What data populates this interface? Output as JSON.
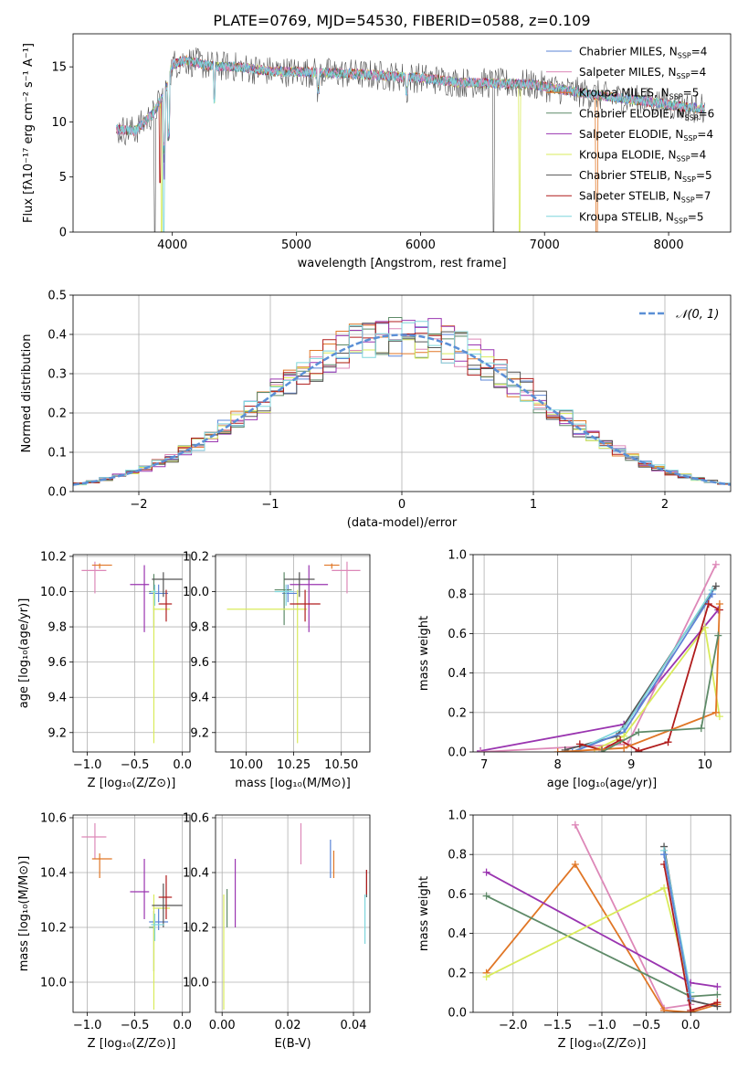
{
  "figure_title": "PLATE=0769, MJD=54530, FIBERID=0588, z=0.109",
  "colors": {
    "Chabrier MILES": "#5b84d6",
    "Salpeter MILES": "#dd88b8",
    "Kroupa MILES": "#e07626",
    "Chabrier ELODIE": "#5e8a68",
    "Salpeter ELODIE": "#9a35b0",
    "Kroupa ELODIE": "#d9eb5b",
    "Chabrier STELIB": "#555555",
    "Salpeter STELIB": "#b01c1c",
    "Kroupa STELIB": "#7fd6dc"
  },
  "chart_data": [
    {
      "id": "spectrum",
      "type": "line",
      "xlabel": "wavelength [Angstrom, rest frame]",
      "ylabel": "Flux [fλ10⁻¹⁷ erg cm⁻² s⁻¹ A⁻¹]",
      "xlim": [
        3200,
        8500
      ],
      "ylim": [
        0,
        18
      ],
      "xticks": [
        4000,
        5000,
        6000,
        7000,
        8000
      ],
      "yticks": [
        0,
        5,
        10,
        15
      ],
      "grid": false,
      "legend": "top-right",
      "legend_entries": [
        {
          "name": "Chabrier MILES",
          "suffix": "=4"
        },
        {
          "name": "Salpeter MILES",
          "suffix": "=4"
        },
        {
          "name": "Kroupa MILES",
          "suffix": "=5"
        },
        {
          "name": "Chabrier ELODIE",
          "suffix": "=6"
        },
        {
          "name": "Salpeter ELODIE",
          "suffix": "=4"
        },
        {
          "name": "Kroupa ELODIE",
          "suffix": "=4"
        },
        {
          "name": "Chabrier STELIB",
          "suffix": "=5"
        },
        {
          "name": "Salpeter STELIB",
          "suffix": "=7"
        },
        {
          "name": "Kroupa STELIB",
          "suffix": "=5"
        }
      ],
      "continuum": {
        "x": [
          3550,
          3700,
          3850,
          3950,
          4000,
          4100,
          4300,
          4500,
          4800,
          5100,
          5400,
          5700,
          6000,
          6300,
          6600,
          6900,
          7200,
          7500,
          7800,
          8100,
          8300
        ],
        "y": [
          9.3,
          9.2,
          10.8,
          13.0,
          15.2,
          15.6,
          15.1,
          15.0,
          14.6,
          14.5,
          14.4,
          14.2,
          14.0,
          13.6,
          13.5,
          13.4,
          12.8,
          12.3,
          11.9,
          11.4,
          11.2
        ]
      }
    },
    {
      "id": "residuals",
      "type": "bar",
      "xlabel": "(data-model)/error",
      "ylabel": "Normed distribution",
      "xlim": [
        -2.5,
        2.5
      ],
      "ylim": [
        0,
        0.5
      ],
      "xticks": [
        -2,
        -1,
        0,
        1,
        2
      ],
      "yticks": [
        0.0,
        0.1,
        0.2,
        0.3,
        0.4,
        0.5
      ],
      "grid": true,
      "legend": "top-right",
      "legend_label": "𝒩(0, 1)",
      "bin_width": 0.1,
      "gaussian_color": "#5b8fd6"
    },
    {
      "id": "Z-age",
      "type": "scatter",
      "xlabel": "Z [log₁₀(Z/Z⊙)]",
      "ylabel": "age  [log₁₀(age/yr)]",
      "xlim": [
        -1.15,
        0.08
      ],
      "ylim": [
        9.09,
        10.21
      ],
      "xticks": [
        -1.0,
        -0.5,
        0.0
      ],
      "yticks": [
        9.2,
        9.4,
        9.6,
        9.8,
        10.0,
        10.2
      ],
      "grid": true,
      "points": [
        {
          "model": "Chabrier MILES",
          "x": -0.25,
          "y": 9.99,
          "xerr": [
            0.1,
            0.1
          ],
          "yerr": [
            0.05,
            0.05
          ]
        },
        {
          "model": "Salpeter MILES",
          "x": -0.92,
          "y": 10.12,
          "xerr": [
            0.14,
            0.12
          ],
          "yerr": [
            0.13,
            0.05
          ]
        },
        {
          "model": "Kroupa MILES",
          "x": -0.87,
          "y": 10.15,
          "xerr": [
            0.08,
            0.13
          ],
          "yerr": [
            0.02,
            0.01
          ]
        },
        {
          "model": "Chabrier ELODIE",
          "x": -0.3,
          "y": 10.0,
          "xerr": [
            0.05,
            0.01
          ],
          "yerr": [
            0.2,
            0.1
          ]
        },
        {
          "model": "Salpeter ELODIE",
          "x": -0.4,
          "y": 10.04,
          "xerr": [
            0.15,
            0.05
          ],
          "yerr": [
            0.27,
            0.11
          ]
        },
        {
          "model": "Kroupa ELODIE",
          "x": -0.3,
          "y": 9.9,
          "xerr": [
            0.01,
            0.17
          ],
          "yerr": [
            0.76,
            0.11
          ]
        },
        {
          "model": "Chabrier STELIB",
          "x": -0.2,
          "y": 10.07,
          "xerr": [
            0.12,
            0.2
          ],
          "yerr": [
            0.1,
            0.04
          ]
        },
        {
          "model": "Salpeter STELIB",
          "x": -0.17,
          "y": 9.93,
          "xerr": [
            0.08,
            0.06
          ],
          "yerr": [
            0.1,
            0.08
          ]
        },
        {
          "model": "Kroupa STELIB",
          "x": -0.29,
          "y": 10.0,
          "xerr": [
            0.04,
            0.02
          ],
          "yerr": [
            0.08,
            0.04
          ]
        }
      ]
    },
    {
      "id": "mass-age",
      "type": "scatter",
      "xlabel": "mass [log₁₀(M/M⊙)]",
      "ylabel": "",
      "xlim": [
        9.84,
        10.65
      ],
      "ylim": [
        9.09,
        10.21
      ],
      "xticks": [
        10.0,
        10.25,
        10.5
      ],
      "yticks": [
        9.2,
        9.4,
        9.6,
        9.8,
        10.0,
        10.2
      ],
      "grid": true,
      "points": [
        {
          "model": "Chabrier MILES",
          "x": 10.22,
          "y": 9.99,
          "xerr": [
            0.03,
            0.05
          ],
          "yerr": [
            0.05,
            0.05
          ]
        },
        {
          "model": "Salpeter MILES",
          "x": 10.53,
          "y": 10.12,
          "xerr": [
            0.08,
            0.07
          ],
          "yerr": [
            0.13,
            0.05
          ]
        },
        {
          "model": "Kroupa MILES",
          "x": 10.45,
          "y": 10.15,
          "xerr": [
            0.04,
            0.04
          ],
          "yerr": [
            0.02,
            0.01
          ]
        },
        {
          "model": "Chabrier ELODIE",
          "x": 10.2,
          "y": 10.01,
          "xerr": [
            0.05,
            0.04
          ],
          "yerr": [
            0.2,
            0.1
          ]
        },
        {
          "model": "Salpeter ELODIE",
          "x": 10.33,
          "y": 10.04,
          "xerr": [
            0.1,
            0.1
          ],
          "yerr": [
            0.27,
            0.11
          ]
        },
        {
          "model": "Kroupa ELODIE",
          "x": 10.27,
          "y": 9.9,
          "xerr": [
            0.37,
            0.05
          ],
          "yerr": [
            0.76,
            0.11
          ]
        },
        {
          "model": "Chabrier STELIB",
          "x": 10.28,
          "y": 10.07,
          "xerr": [
            0.08,
            0.08
          ],
          "yerr": [
            0.1,
            0.04
          ]
        },
        {
          "model": "Salpeter STELIB",
          "x": 10.31,
          "y": 9.93,
          "xerr": [
            0.08,
            0.08
          ],
          "yerr": [
            0.1,
            0.08
          ]
        },
        {
          "model": "Kroupa STELIB",
          "x": 10.21,
          "y": 10.0,
          "xerr": [
            0.06,
            0.04
          ],
          "yerr": [
            0.08,
            0.04
          ]
        }
      ]
    },
    {
      "id": "age-weight",
      "type": "line",
      "xlabel": "age  [log₁₀(age/yr)]",
      "ylabel": "mass weight",
      "xlim": [
        6.85,
        10.35
      ],
      "ylim": [
        0,
        1.0
      ],
      "xticks": [
        7,
        8,
        9,
        10
      ],
      "yticks": [
        0.0,
        0.2,
        0.4,
        0.6,
        0.8,
        1.0
      ],
      "grid": true,
      "series": [
        {
          "model": "Salpeter ELODIE",
          "x": [
            6.95,
            8.9,
            10.18
          ],
          "y": [
            0.005,
            0.14,
            0.72
          ]
        },
        {
          "model": "Salpeter MILES",
          "x": [
            6.95,
            8.95,
            10.15
          ],
          "y": [
            0.0,
            0.04,
            0.95
          ]
        },
        {
          "model": "Chabrier STELIB",
          "x": [
            8.1,
            8.8,
            10.15
          ],
          "y": [
            0.01,
            0.08,
            0.84
          ]
        },
        {
          "model": "Kroupa STELIB",
          "x": [
            8.2,
            8.9,
            10.1
          ],
          "y": [
            0.0,
            0.12,
            0.82
          ]
        },
        {
          "model": "Chabrier MILES",
          "x": [
            8.2,
            8.9,
            10.1
          ],
          "y": [
            0.0,
            0.1,
            0.8
          ]
        },
        {
          "model": "Kroupa ELODIE",
          "x": [
            8.5,
            8.9,
            10.0,
            10.2
          ],
          "y": [
            0.01,
            0.08,
            0.63,
            0.18
          ]
        },
        {
          "model": "Salpeter STELIB",
          "x": [
            8.3,
            8.6,
            8.85,
            9.1,
            9.5,
            10.05,
            10.2
          ],
          "y": [
            0.04,
            0.01,
            0.06,
            0.005,
            0.05,
            0.75,
            0.72
          ]
        },
        {
          "model": "Kroupa MILES",
          "x": [
            8.0,
            8.9,
            10.15,
            10.2
          ],
          "y": [
            0.0,
            0.02,
            0.2,
            0.75
          ]
        },
        {
          "model": "Chabrier ELODIE",
          "x": [
            8.6,
            9.1,
            9.95,
            10.18
          ],
          "y": [
            0.0,
            0.1,
            0.12,
            0.59
          ]
        }
      ]
    },
    {
      "id": "Z-mass",
      "type": "scatter",
      "xlabel": "Z [log₁₀(Z/Z⊙)]",
      "ylabel": "mass [log₁₀(M/M⊙)]",
      "xlim": [
        -1.15,
        0.08
      ],
      "ylim": [
        9.89,
        10.61
      ],
      "xticks": [
        -1.0,
        -0.5,
        0.0
      ],
      "yticks": [
        10.0,
        10.2,
        10.4,
        10.6
      ],
      "grid": true,
      "points": [
        {
          "model": "Chabrier MILES",
          "x": -0.25,
          "y": 10.22,
          "xerr": [
            0.1,
            0.1
          ],
          "yerr": [
            0.03,
            0.05
          ]
        },
        {
          "model": "Salpeter MILES",
          "x": -0.92,
          "y": 10.53,
          "xerr": [
            0.14,
            0.12
          ],
          "yerr": [
            0.08,
            0.05
          ]
        },
        {
          "model": "Kroupa MILES",
          "x": -0.87,
          "y": 10.45,
          "xerr": [
            0.08,
            0.13
          ],
          "yerr": [
            0.07,
            0.02
          ]
        },
        {
          "model": "Chabrier ELODIE",
          "x": -0.3,
          "y": 10.2,
          "xerr": [
            0.05,
            0.01
          ],
          "yerr": [
            0.16,
            0.06
          ]
        },
        {
          "model": "Salpeter ELODIE",
          "x": -0.4,
          "y": 10.33,
          "xerr": [
            0.15,
            0.05
          ],
          "yerr": [
            0.1,
            0.12
          ]
        },
        {
          "model": "Kroupa ELODIE",
          "x": -0.3,
          "y": 10.27,
          "xerr": [
            0.01,
            0.17
          ],
          "yerr": [
            0.37,
            0.05
          ]
        },
        {
          "model": "Chabrier STELIB",
          "x": -0.2,
          "y": 10.28,
          "xerr": [
            0.12,
            0.2
          ],
          "yerr": [
            0.08,
            0.08
          ]
        },
        {
          "model": "Salpeter STELIB",
          "x": -0.17,
          "y": 10.31,
          "xerr": [
            0.08,
            0.06
          ],
          "yerr": [
            0.08,
            0.08
          ]
        },
        {
          "model": "Kroupa STELIB",
          "x": -0.29,
          "y": 10.21,
          "xerr": [
            0.04,
            0.1
          ],
          "yerr": [
            0.06,
            0.04
          ]
        }
      ]
    },
    {
      "id": "ebv-mass",
      "type": "scatter",
      "xlabel": "E(B-V)",
      "ylabel": "",
      "xlim": [
        -0.002,
        0.045
      ],
      "ylim": [
        9.89,
        10.61
      ],
      "xticks": [
        0.0,
        0.02,
        0.04
      ],
      "yticks": [
        10.0,
        10.2,
        10.4,
        10.6
      ],
      "grid": true,
      "points": [
        {
          "model": "Chabrier MILES",
          "x": 0.033,
          "y": 10.44,
          "yerr": [
            0.06,
            0.08
          ]
        },
        {
          "model": "Salpeter MILES",
          "x": 0.024,
          "y": 10.51,
          "yerr": [
            0.08,
            0.07
          ]
        },
        {
          "model": "Kroupa MILES",
          "x": 0.034,
          "y": 10.43,
          "yerr": [
            0.05,
            0.05
          ]
        },
        {
          "model": "Chabrier ELODIE",
          "x": 0.0015,
          "y": 10.27,
          "yerr": [
            0.07,
            0.07
          ]
        },
        {
          "model": "Salpeter ELODIE",
          "x": 0.004,
          "y": 10.33,
          "yerr": [
            0.13,
            0.12
          ]
        },
        {
          "model": "Kroupa ELODIE",
          "x": 0.0005,
          "y": 10.27,
          "yerr": [
            0.37,
            0.05
          ]
        },
        {
          "model": "Chabrier STELIB",
          "x": 0.044,
          "y": 10.35,
          "yerr": [
            0.04,
            0.06
          ]
        },
        {
          "model": "Salpeter STELIB",
          "x": 0.044,
          "y": 10.37,
          "yerr": [
            0.05,
            0.04
          ]
        },
        {
          "model": "Kroupa STELIB",
          "x": 0.0435,
          "y": 10.22,
          "yerr": [
            0.08,
            0.1
          ]
        }
      ]
    },
    {
      "id": "Z-weight",
      "type": "line",
      "xlabel": "Z [log₁₀(Z/Z⊙)]",
      "ylabel": "mass weight",
      "xlim": [
        -2.45,
        0.45
      ],
      "ylim": [
        0,
        1.0
      ],
      "xticks": [
        -2.0,
        -1.5,
        -1.0,
        -0.5,
        0.0
      ],
      "yticks": [
        0.0,
        0.2,
        0.4,
        0.6,
        0.8,
        1.0
      ],
      "grid": true,
      "series": [
        {
          "model": "Salpeter MILES",
          "x": [
            -1.3,
            -0.3,
            0.0
          ],
          "y": [
            0.95,
            0.02,
            0.04
          ]
        },
        {
          "model": "Kroupa MILES",
          "x": [
            -2.3,
            -1.3,
            -0.3,
            0.0,
            0.3
          ],
          "y": [
            0.2,
            0.75,
            0.01,
            0.0,
            0.04
          ]
        },
        {
          "model": "Salpeter ELODIE",
          "x": [
            -2.3,
            0.0,
            0.3
          ],
          "y": [
            0.71,
            0.15,
            0.13
          ]
        },
        {
          "model": "Chabrier ELODIE",
          "x": [
            -2.3,
            0.0,
            0.3
          ],
          "y": [
            0.59,
            0.08,
            0.09
          ]
        },
        {
          "model": "Kroupa ELODIE",
          "x": [
            -2.3,
            -0.3,
            0.0
          ],
          "y": [
            0.18,
            0.63,
            0.1
          ]
        },
        {
          "model": "Chabrier STELIB",
          "x": [
            -0.3,
            0.0,
            0.3
          ],
          "y": [
            0.84,
            0.06,
            0.03
          ]
        },
        {
          "model": "Salpeter STELIB",
          "x": [
            -0.3,
            0.0,
            0.3
          ],
          "y": [
            0.75,
            0.01,
            0.05
          ]
        },
        {
          "model": "Kroupa STELIB",
          "x": [
            -0.3,
            0.0
          ],
          "y": [
            0.82,
            0.1
          ]
        },
        {
          "model": "Chabrier MILES",
          "x": [
            -0.3,
            0.0
          ],
          "y": [
            0.8,
            0.07
          ]
        }
      ]
    }
  ]
}
